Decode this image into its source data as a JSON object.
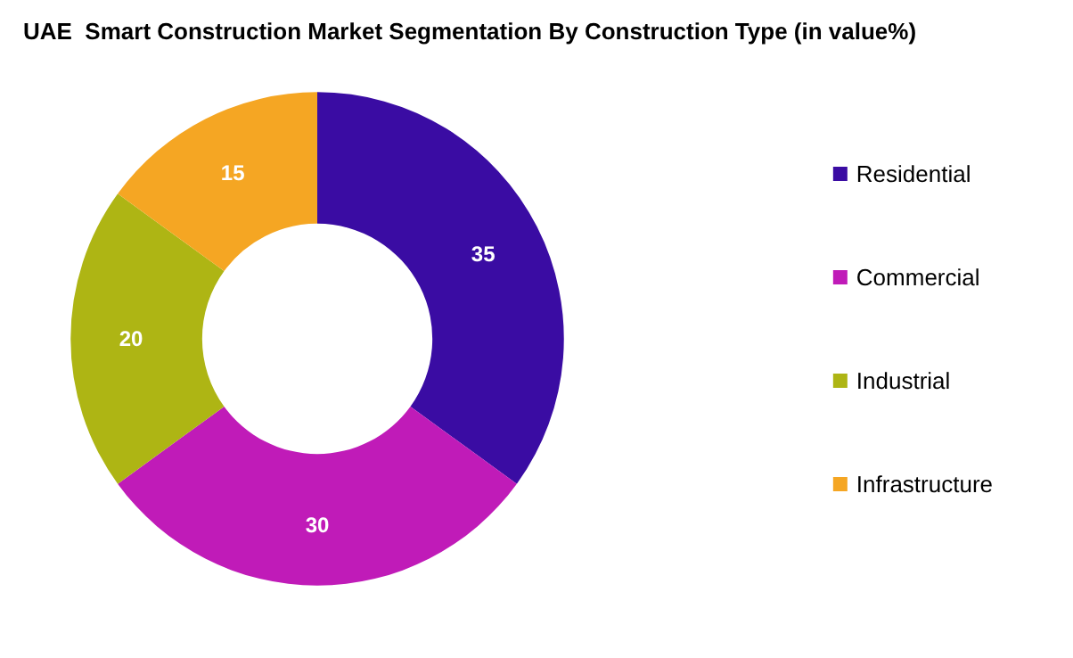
{
  "chart_data": {
    "type": "donut",
    "title": "UAE  Smart Construction Market Segmentation By Construction Type (in value%)",
    "categories": [
      "Residential",
      "Commercial",
      "Industrial",
      "Infrastructure"
    ],
    "values": [
      35,
      30,
      20,
      15
    ],
    "colors": [
      "#3a0ca3",
      "#c01bb8",
      "#aeb514",
      "#f5a623"
    ],
    "data_labels": true,
    "legend": "right"
  }
}
